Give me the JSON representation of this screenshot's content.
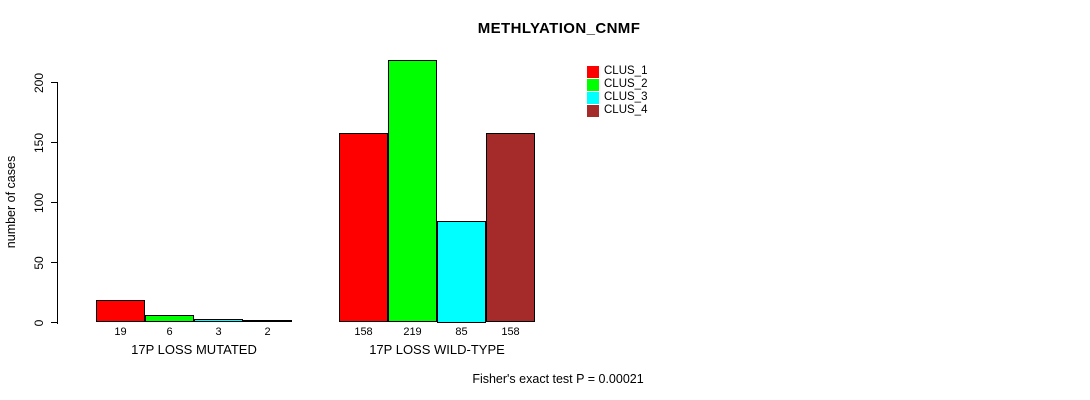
{
  "title": "METHLYATION_CNMF",
  "footer": "Fisher's exact test P = 0.00021",
  "chart_data": {
    "type": "bar",
    "title": "METHLYATION_CNMF",
    "xlabel": "",
    "ylabel": "number of cases",
    "ylim": [
      0,
      200
    ],
    "yticks": [
      0,
      50,
      100,
      150,
      200
    ],
    "grid": false,
    "legend_position": "top-right",
    "annotation": "Fisher's exact test P = 0.00021",
    "categories": [
      "17P LOSS MUTATED",
      "17P LOSS WILD-TYPE"
    ],
    "series": [
      {
        "name": "CLUS_1",
        "color": "#ff0000",
        "values": [
          19,
          158
        ]
      },
      {
        "name": "CLUS_2",
        "color": "#00ff00",
        "values": [
          6,
          219
        ]
      },
      {
        "name": "CLUS_3",
        "color": "#00ffff",
        "values": [
          3,
          85
        ]
      },
      {
        "name": "CLUS_4",
        "color": "#a52a2a",
        "values": [
          2,
          158
        ]
      }
    ],
    "bar_value_labels": [
      [
        19,
        6,
        3,
        2
      ],
      [
        158,
        219,
        85,
        158
      ]
    ]
  }
}
